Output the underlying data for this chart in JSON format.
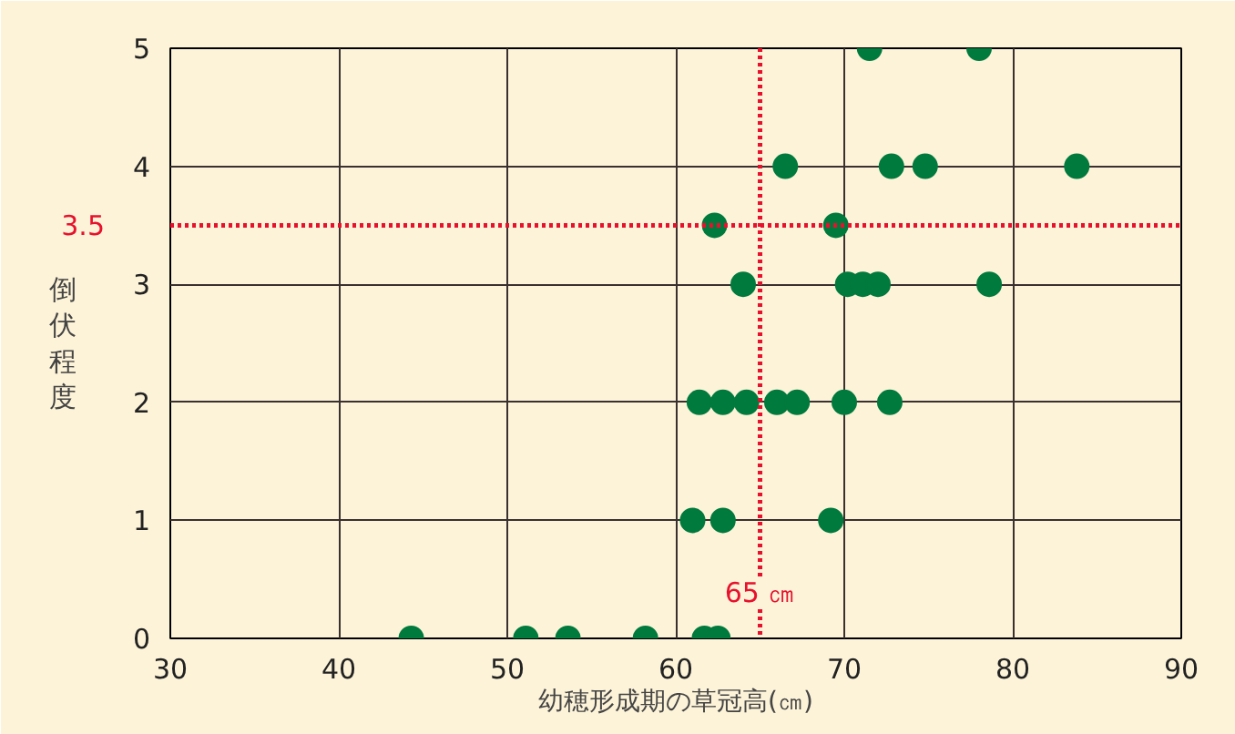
{
  "chart_data": {
    "type": "scatter",
    "xlabel": "幼穂形成期の草冠高(㎝)",
    "ylabel": "倒伏程度",
    "xlim": [
      30,
      90
    ],
    "ylim": [
      0,
      5
    ],
    "xticks": [
      30,
      40,
      50,
      60,
      70,
      80,
      90
    ],
    "yticks": [
      0,
      1,
      2,
      3,
      4,
      5
    ],
    "grid": true,
    "marker": "circle",
    "series": [
      {
        "color": "#007a3d",
        "x": [
          71.5,
          78.0,
          66.5,
          72.8,
          74.8,
          83.8,
          62.3,
          69.5,
          64.0,
          70.2,
          71.1,
          72.0,
          78.6,
          61.4,
          62.8,
          64.2,
          66.0,
          67.2,
          70.0,
          72.7,
          61.0,
          62.8,
          69.2,
          44.3,
          51.1,
          53.6,
          58.2,
          61.7,
          62.5
        ],
        "values": [
          5,
          5,
          4,
          4,
          4,
          4,
          3.5,
          3.5,
          3,
          3,
          3,
          3,
          3,
          2,
          2,
          2,
          2,
          2,
          2,
          2,
          1,
          1,
          1,
          0,
          0,
          0,
          0,
          0,
          0
        ]
      }
    ],
    "ref_lines": [
      {
        "axis": "x",
        "value": 65,
        "label": "65 ㎝",
        "color": "#e8112d",
        "line_style": "dotted"
      },
      {
        "axis": "y",
        "value": 3.5,
        "label": "3.5",
        "color": "#e8112d",
        "line_style": "dotted"
      }
    ]
  }
}
